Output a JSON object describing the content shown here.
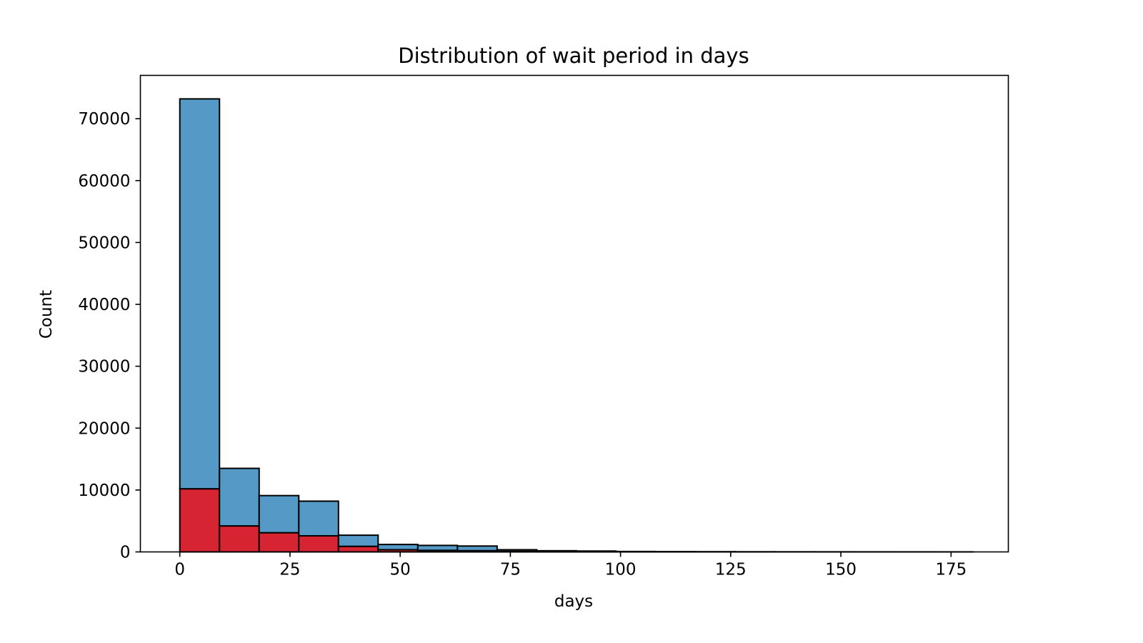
{
  "chart_data": {
    "type": "bar",
    "subtype": "stacked-histogram",
    "title": "Distribution of wait period in days",
    "xlabel": "days",
    "ylabel": "Count",
    "xlim": [
      -8.95,
      188
    ],
    "ylim": [
      0,
      77000
    ],
    "xticks": [
      0,
      25,
      50,
      75,
      100,
      125,
      150,
      175
    ],
    "yticks": [
      0,
      10000,
      20000,
      30000,
      40000,
      50000,
      60000,
      70000
    ],
    "grid": false,
    "legend": "none",
    "bin_edges": [
      0,
      9,
      18,
      27,
      36,
      45,
      54,
      63,
      72,
      81,
      90,
      99,
      108,
      117,
      126,
      135,
      144,
      153,
      162,
      171,
      180
    ],
    "series": [
      {
        "color": "#d62433",
        "values": [
          10200,
          4200,
          3100,
          2600,
          900,
          350,
          250,
          200,
          100,
          40,
          20,
          10,
          5,
          5,
          3,
          2,
          2,
          1,
          1,
          1
        ]
      },
      {
        "color": "#5599c7",
        "values": [
          63000,
          9300,
          6000,
          5600,
          1800,
          850,
          800,
          750,
          250,
          150,
          120,
          60,
          40,
          30,
          20,
          15,
          10,
          8,
          5,
          4
        ]
      }
    ],
    "edge_color": "#000000"
  }
}
